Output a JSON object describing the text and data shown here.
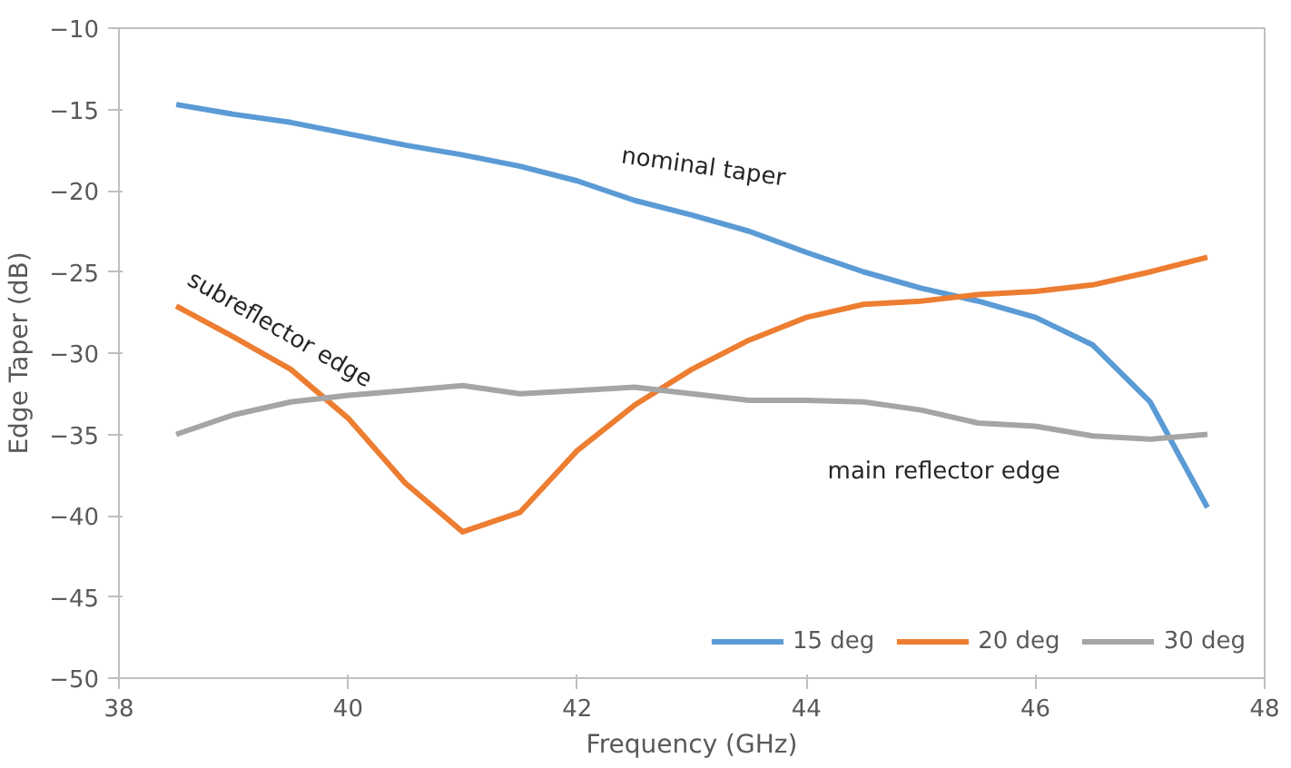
{
  "chart_data": {
    "type": "line",
    "xlabel": "Frequency (GHz)",
    "ylabel": "Edge Taper (dB)",
    "x": [
      38.5,
      39,
      39.5,
      40,
      40.5,
      41,
      41.5,
      42,
      42.5,
      43,
      43.5,
      44,
      44.5,
      45,
      45.5,
      46,
      46.5,
      47,
      47.5
    ],
    "series": [
      {
        "name": "15 deg",
        "color": "#5b9bd5",
        "values": [
          -14.7,
          -15.3,
          -15.8,
          -16.5,
          -17.2,
          -17.8,
          -18.5,
          -19.4,
          -20.6,
          -21.5,
          -22.5,
          -23.8,
          -25,
          -26,
          -26.8,
          -27.8,
          -29.5,
          -33,
          -39.5
        ]
      },
      {
        "name": "20 deg",
        "color": "#ed7d31",
        "values": [
          -27.1,
          -29,
          -31,
          -34,
          -38,
          -41,
          -39.8,
          -36,
          -33.2,
          -31,
          -29.2,
          -27.8,
          -27,
          -26.8,
          -26.4,
          -26.2,
          -25.8,
          -25,
          -24.1
        ]
      },
      {
        "name": "30 deg",
        "color": "#a5a5a5",
        "values": [
          -35,
          -33.8,
          -33,
          -32.6,
          -32.3,
          -32,
          -32.5,
          -32.3,
          -32.1,
          -32.5,
          -32.9,
          -32.9,
          -33,
          -33.5,
          -34.3,
          -34.5,
          -35.1,
          -35.3,
          -35
        ]
      }
    ],
    "xlim": [
      38,
      48
    ],
    "xticks": [
      38,
      40,
      42,
      44,
      46,
      48
    ],
    "ylim": [
      -50,
      -10
    ],
    "yticks": [
      -50,
      -45,
      -40,
      -35,
      -30,
      -25,
      -20,
      -15,
      -10
    ],
    "annotations": [
      "nominal taper",
      "subreflector edge",
      "main reflector edge"
    ],
    "grid": false,
    "legend": "bottom right",
    "marker": "none",
    "line_style": "solid"
  }
}
